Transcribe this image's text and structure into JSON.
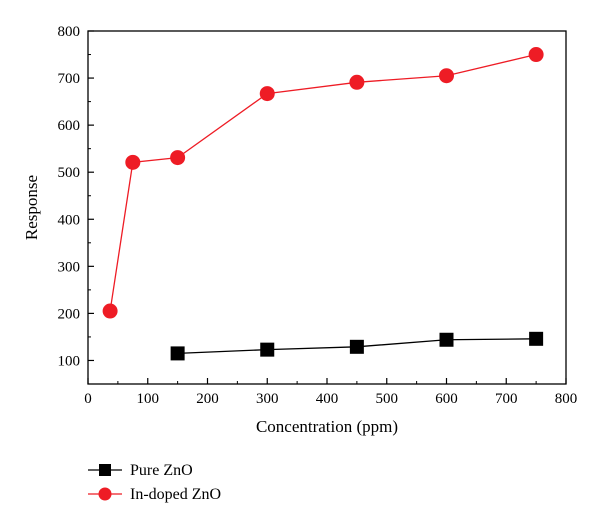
{
  "chart_data": {
    "type": "line",
    "title": "",
    "xlabel": "Concentration (ppm)",
    "ylabel": "Response",
    "xlim": [
      0,
      800
    ],
    "ylim": [
      50,
      800
    ],
    "xticks": [
      0,
      100,
      200,
      300,
      400,
      500,
      600,
      700,
      800
    ],
    "yticks": [
      100,
      200,
      300,
      400,
      500,
      600,
      700,
      800
    ],
    "grid": false,
    "legend_position": "bottom-left, below plot",
    "series": [
      {
        "name": "Pure ZnO",
        "color": "#000000",
        "marker": "square",
        "x": [
          150,
          300,
          450,
          600,
          750
        ],
        "y": [
          115,
          123,
          129,
          144,
          146
        ]
      },
      {
        "name": "In-doped ZnO",
        "color": "#ee1c25",
        "marker": "circle",
        "x": [
          37,
          75,
          150,
          300,
          450,
          600,
          750
        ],
        "y": [
          205,
          521,
          531,
          667,
          691,
          705,
          750
        ]
      }
    ]
  }
}
